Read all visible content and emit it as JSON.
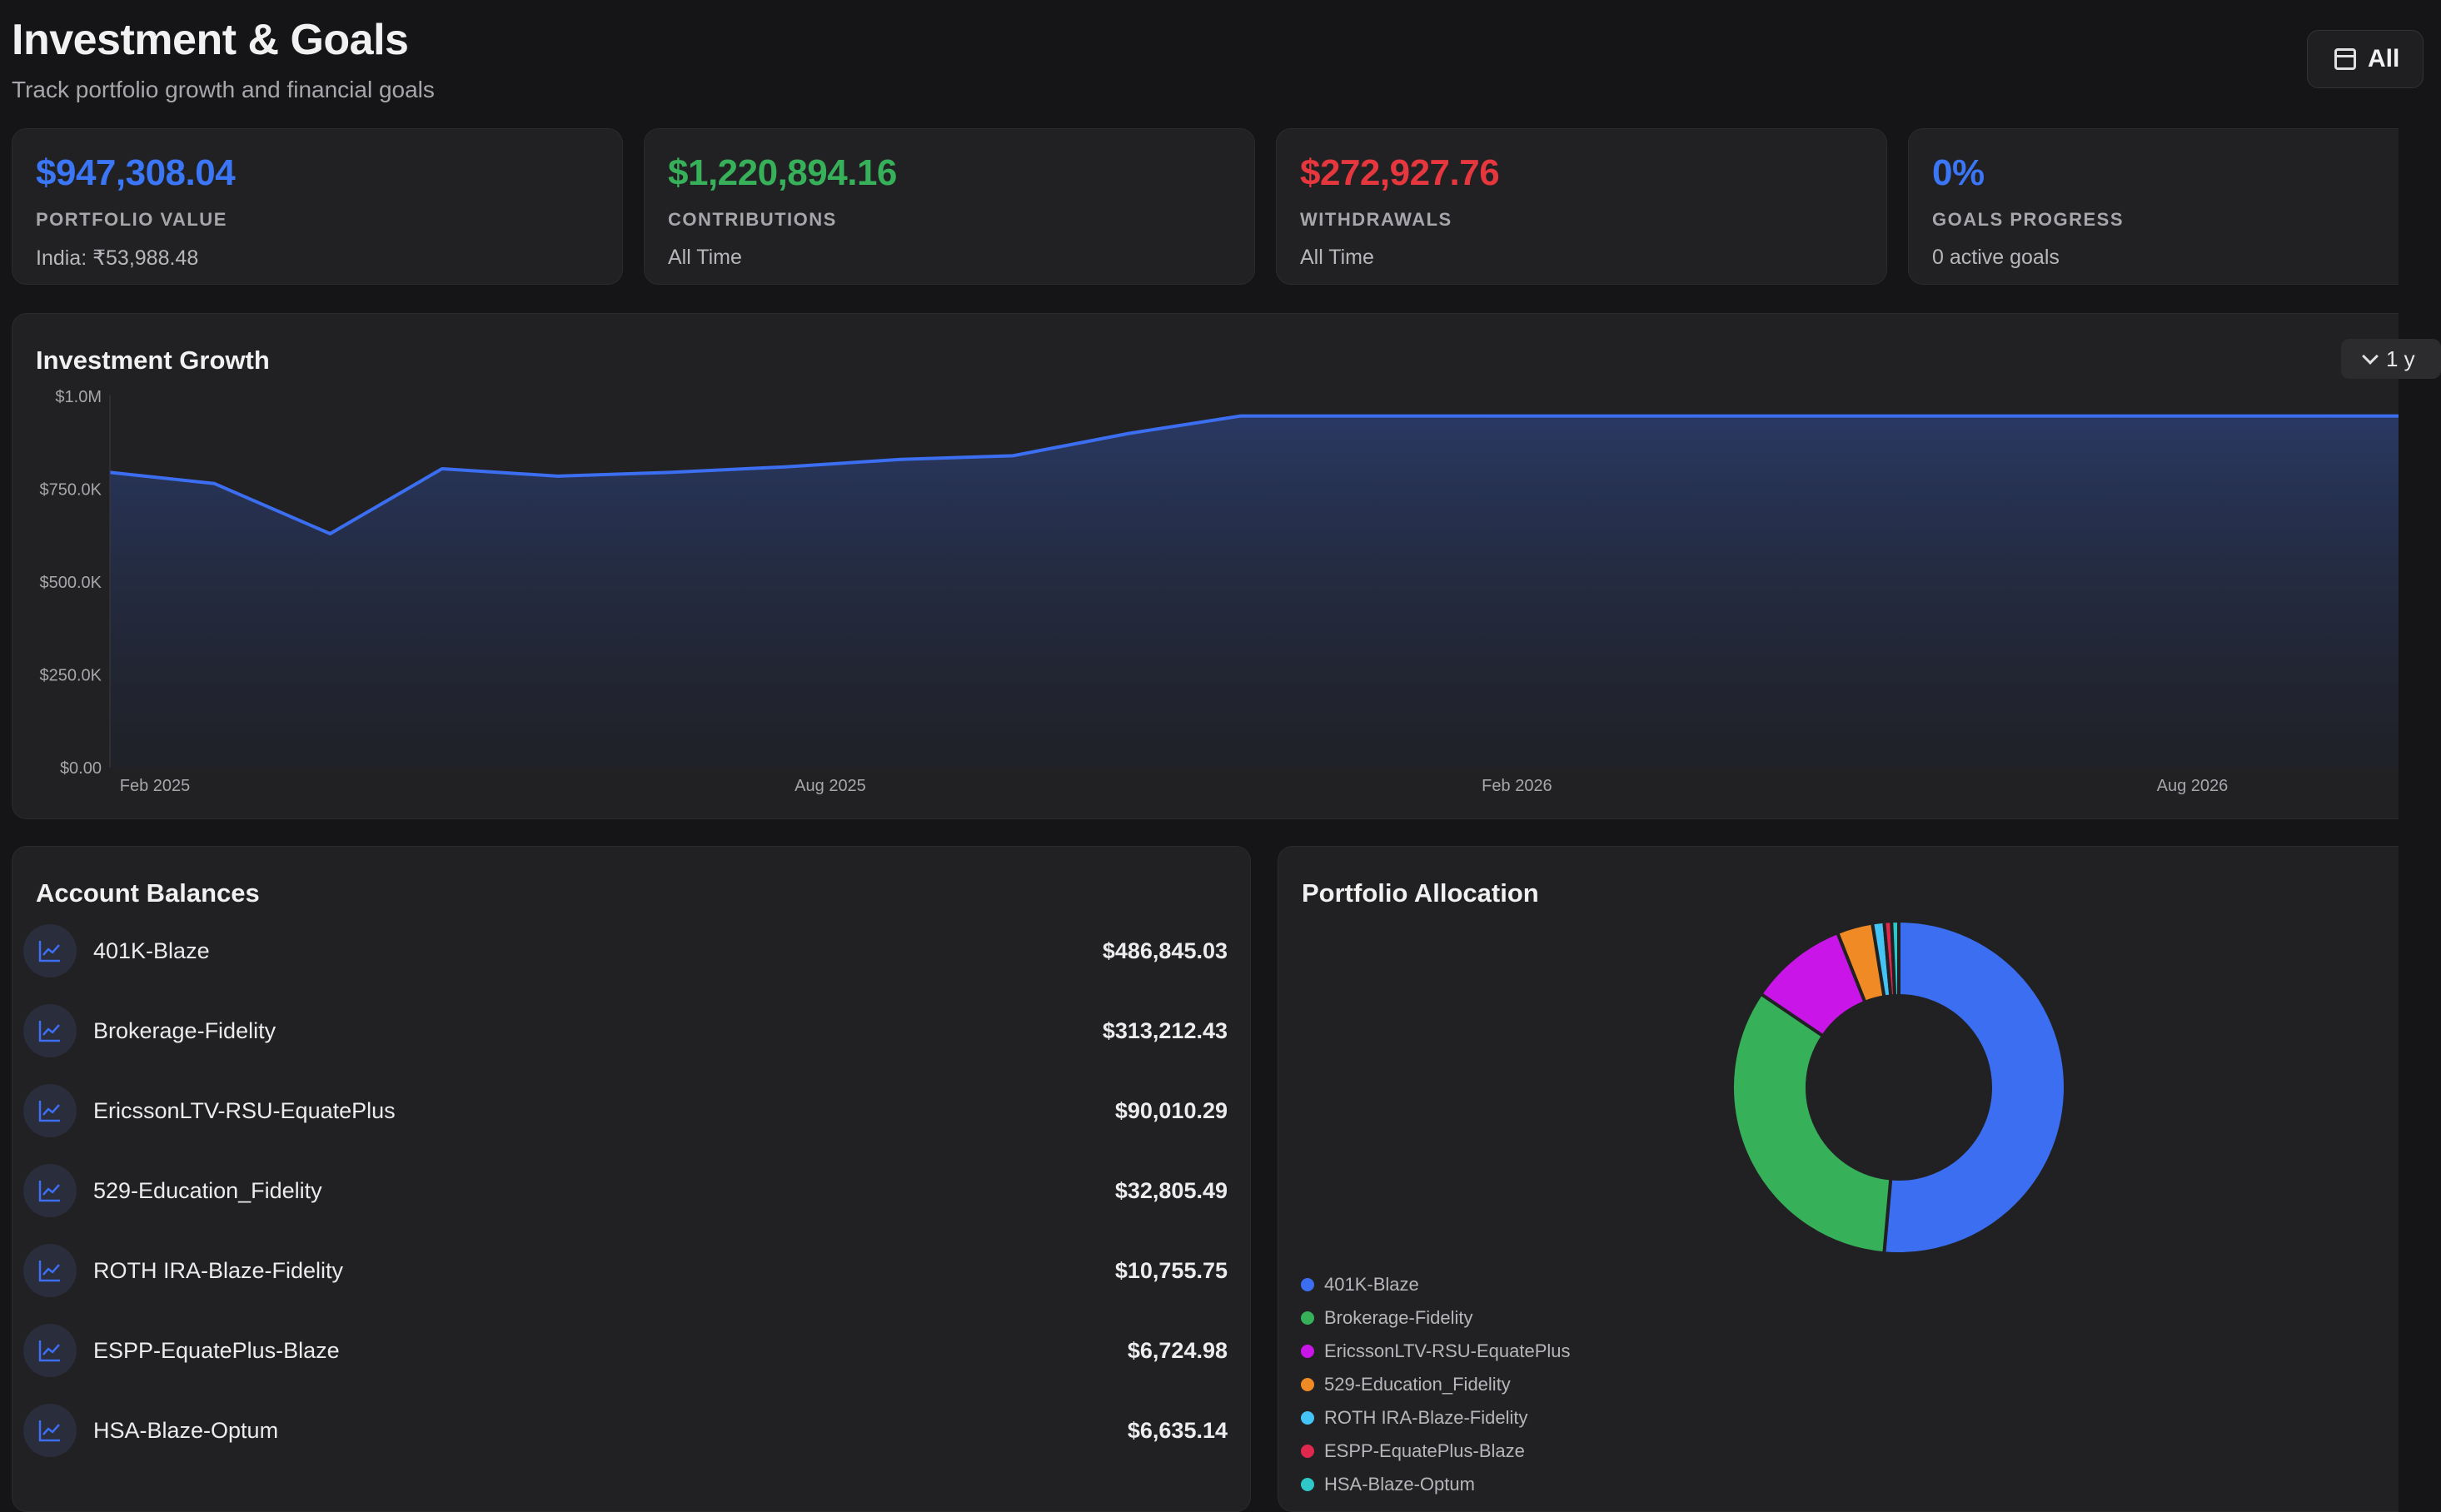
{
  "header": {
    "title": "Investment & Goals",
    "subtitle": "Track portfolio growth and financial goals",
    "range_label": "All"
  },
  "stats": [
    {
      "value": "$947,308.04",
      "label": "PORTFOLIO VALUE",
      "sub": "India: ₹53,988.48",
      "color": "#3b76f6"
    },
    {
      "value": "$1,220,894.16",
      "label": "CONTRIBUTIONS",
      "sub": "All Time",
      "color": "#37b05a"
    },
    {
      "value": "$272,927.76",
      "label": "WITHDRAWALS",
      "sub": "All Time",
      "color": "#e5373d"
    },
    {
      "value": "0%",
      "label": "GOALS PROGRESS",
      "sub": "0 active goals",
      "color": "#3b76f6"
    }
  ],
  "growth": {
    "title": "Investment Growth",
    "period_label": "1 y",
    "chart_data": {
      "type": "area",
      "y_ticks": [
        "$1.0M",
        "$750.0K",
        "$500.0K",
        "$250.0K",
        "$0.00"
      ],
      "x_ticks": [
        "Feb 2025",
        "Aug 2025",
        "Feb 2026",
        "Aug 2026"
      ],
      "ylim": [
        0,
        1000000
      ],
      "x": [
        "2025-02-01",
        "2025-03-01",
        "2025-04-01",
        "2025-05-01",
        "2025-06-01",
        "2025-07-01",
        "2025-08-01",
        "2025-09-01",
        "2025-10-01",
        "2025-11-01",
        "2025-12-01",
        "2026-01-01",
        "2026-02-01",
        "2026-03-01",
        "2026-04-01",
        "2026-05-01",
        "2026-06-01",
        "2026-07-01",
        "2026-08-01",
        "2026-09-01"
      ],
      "values": [
        795000,
        765000,
        630000,
        805000,
        785000,
        795000,
        810000,
        830000,
        840000,
        900000,
        947000,
        947000,
        947000,
        947000,
        947000,
        947000,
        947000,
        947000,
        947000,
        947000
      ],
      "line_color": "#3b6ef0",
      "grid": false
    }
  },
  "accounts": {
    "title": "Account Balances",
    "items": [
      {
        "name": "401K-Blaze",
        "balance": "$486,845.03"
      },
      {
        "name": "Brokerage-Fidelity",
        "balance": "$313,212.43"
      },
      {
        "name": "EricssonLTV-RSU-EquatePlus",
        "balance": "$90,010.29"
      },
      {
        "name": "529-Education_Fidelity",
        "balance": "$32,805.49"
      },
      {
        "name": "ROTH IRA-Blaze-Fidelity",
        "balance": "$10,755.75"
      },
      {
        "name": "ESPP-EquatePlus-Blaze",
        "balance": "$6,724.98"
      },
      {
        "name": "HSA-Blaze-Optum",
        "balance": "$6,635.14"
      }
    ]
  },
  "allocation": {
    "title": "Portfolio Allocation",
    "chart_data": {
      "type": "pie",
      "categories": [
        "401K-Blaze",
        "Brokerage-Fidelity",
        "EricssonLTV-RSU-EquatePlus",
        "529-Education_Fidelity",
        "ROTH IRA-Blaze-Fidelity",
        "ESPP-EquatePlus-Blaze",
        "HSA-Blaze-Optum"
      ],
      "values": [
        486845.03,
        313212.43,
        90010.29,
        32805.49,
        10755.75,
        6724.98,
        6635.14
      ],
      "colors": [
        "#3b6ef0",
        "#37b05a",
        "#c915e8",
        "#f08a24",
        "#44c3f5",
        "#e0284f",
        "#2ec8c8"
      ],
      "legend": "bottom-left"
    }
  }
}
